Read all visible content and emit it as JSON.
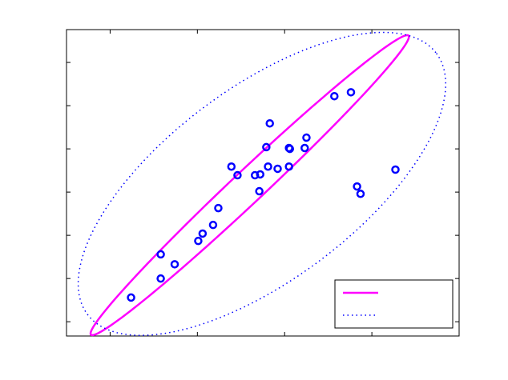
{
  "chart_data": {
    "type": "scatter",
    "xlim": [
      -0.5,
      4
    ],
    "ylim": [
      -0.33,
      6.76
    ],
    "xticks": [
      0,
      1,
      2,
      3,
      4
    ],
    "yticks": [
      0,
      1,
      2,
      3,
      4,
      5,
      6
    ],
    "point_color": "#0000ff",
    "x": [
      0.24,
      0.58,
      0.58,
      0.74,
      1.01,
      1.06,
      1.18,
      1.24,
      1.39,
      1.46,
      1.66,
      1.72,
      1.71,
      1.81,
      1.79,
      1.83,
      1.92,
      2.05,
      2.06,
      2.05,
      2.23,
      2.25,
      2.57,
      2.76,
      2.83,
      2.87,
      3.27
    ],
    "values": [
      0.56,
      1.56,
      1.0,
      1.33,
      1.87,
      2.04,
      2.24,
      2.63,
      3.59,
      3.39,
      3.39,
      3.41,
      3.02,
      3.59,
      4.04,
      4.59,
      3.54,
      4.02,
      4.0,
      3.59,
      4.02,
      4.26,
      5.22,
      5.31,
      3.13,
      2.96,
      3.52
    ],
    "ellipses": [
      {
        "color": "#ff00ff",
        "style": "solid",
        "center": [
          1.6,
          3.16
        ],
        "major": [
          1.82,
          3.46
        ],
        "minor": [
          0.126,
          -0.27
        ]
      },
      {
        "color": "#0000ff",
        "style": "dotted",
        "center": [
          1.74,
          3.19
        ],
        "major": [
          2.0,
          3.02
        ],
        "minor": [
          0.66,
          -1.78
        ]
      }
    ]
  }
}
